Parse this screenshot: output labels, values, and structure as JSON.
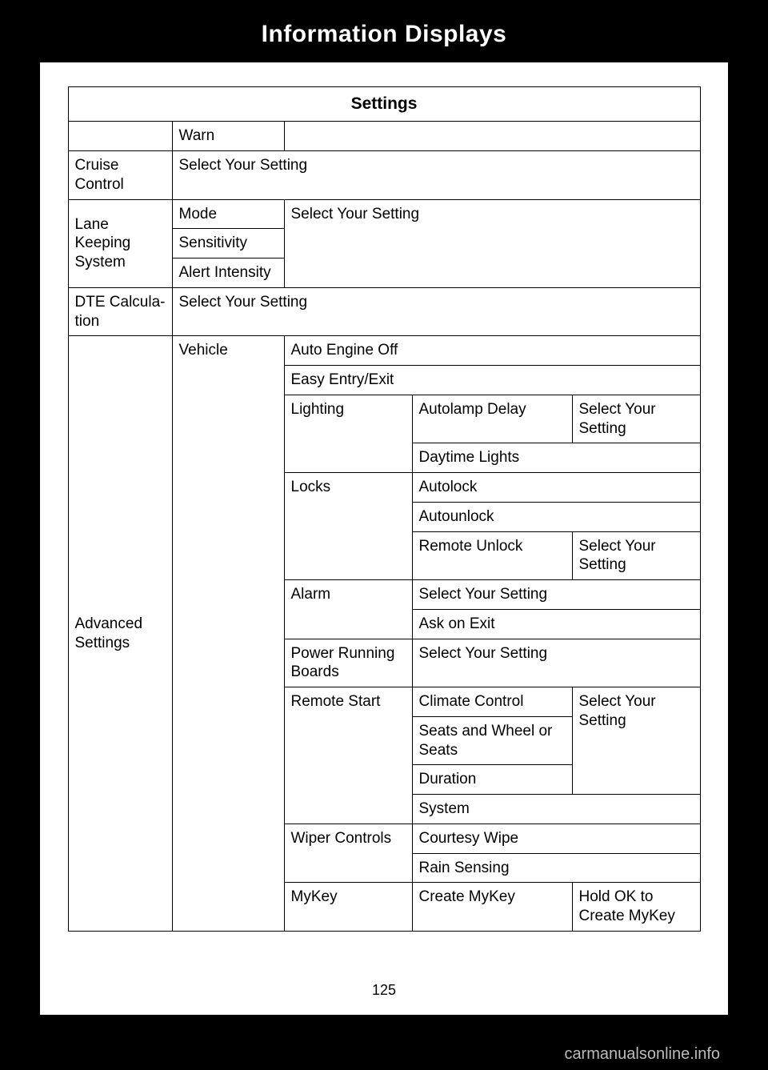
{
  "header": {
    "title": "Information Displays"
  },
  "table": {
    "title": "Settings",
    "r1": {
      "c2": "Warn"
    },
    "r2": {
      "c1": "Cruise Control",
      "c2": "Select Your Setting"
    },
    "r3": {
      "c1": "Lane Keeping System",
      "c2a": "Mode",
      "c2b": "Sensitivity",
      "c2c": "Alert Intensity",
      "c3": "Select Your Setting"
    },
    "r4": {
      "c1": "DTE Calcula-tion",
      "c2": "Select Your Setting"
    },
    "adv": {
      "c1": "Advanced Settings",
      "vehicle": "Vehicle",
      "mykey": "MyKey",
      "autoEngineOff": "Auto Engine Off",
      "easyEntry": "Easy Entry/Exit",
      "lighting": "Lighting",
      "autolampDelay": "Autolamp Delay",
      "selectYourSetting": "Select Your Setting",
      "daytimeLights": "Daytime Lights",
      "locks": "Locks",
      "autolock": "Autolock",
      "autounlock": "Autounlock",
      "remoteUnlock": "Remote Unlock",
      "alarm": "Alarm",
      "askOnExit": "Ask on Exit",
      "powerRunningBoards": "Power Running Boards",
      "remoteStart": "Remote Start",
      "climateControl": "Climate Control",
      "seatsWheel": "Seats and Wheel or Seats",
      "duration": "Duration",
      "system": "System",
      "wiperControls": "Wiper Controls",
      "courtesyWipe": "Courtesy Wipe",
      "rainSensing": "Rain Sensing",
      "createMyKey": "Create MyKey",
      "holdOk": "Hold OK to Create MyKey"
    }
  },
  "pageNumber": "125",
  "watermark": "carmanualsonline.info",
  "style": {
    "page_bg": "#000000",
    "sheet_bg": "#ffffff",
    "border_color": "#000000",
    "header_text_color": "#ffffff",
    "body_text_color": "#000000",
    "watermark_color": "#bbbbbb",
    "title_fontsize": 30,
    "cell_fontsize": 19,
    "table_title_fontsize": 21
  }
}
